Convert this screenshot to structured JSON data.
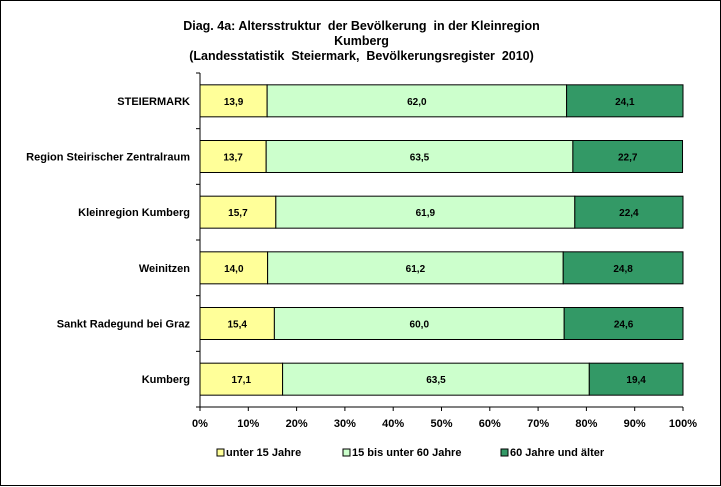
{
  "chart_data": {
    "type": "bar",
    "orientation": "horizontal",
    "stacked": "percent",
    "title": "Diag. 4a: Altersstruktur  der Bevölkerung  in der Kleinregion\nKumberg\n(Landesstatistik  Steiermark,  Bevölkerungsregister  2010)",
    "categories": [
      "STEIERMARK",
      "Region Steirischer Zentralraum",
      "Kleinregion Kumberg",
      "Weinitzen",
      "Sankt Radegund bei Graz",
      "Kumberg"
    ],
    "series": [
      {
        "name": "unter 15 Jahre",
        "color": "#ffff99",
        "values": [
          13.9,
          13.7,
          15.7,
          14.0,
          15.4,
          17.1
        ],
        "labels": [
          "13,9",
          "13,7",
          "15,7",
          "14,0",
          "15,4",
          "17,1"
        ]
      },
      {
        "name": "15 bis unter 60 Jahre",
        "color": "#ccffcc",
        "values": [
          62.0,
          63.5,
          61.9,
          61.2,
          60.0,
          63.5
        ],
        "labels": [
          "62,0",
          "63,5",
          "61,9",
          "61,2",
          "60,0",
          "63,5"
        ]
      },
      {
        "name": "60 Jahre und älter",
        "color": "#339966",
        "values": [
          24.1,
          22.7,
          22.4,
          24.8,
          24.6,
          19.4
        ],
        "labels": [
          "24,1",
          "22,7",
          "22,4",
          "24,8",
          "24,6",
          "19,4"
        ]
      }
    ],
    "xlim": [
      0,
      100
    ],
    "xticks": [
      "0%",
      "10%",
      "20%",
      "30%",
      "40%",
      "50%",
      "60%",
      "70%",
      "80%",
      "90%",
      "100%"
    ],
    "xlabel": "",
    "ylabel": "",
    "grid": false,
    "legend_position": "bottom"
  }
}
